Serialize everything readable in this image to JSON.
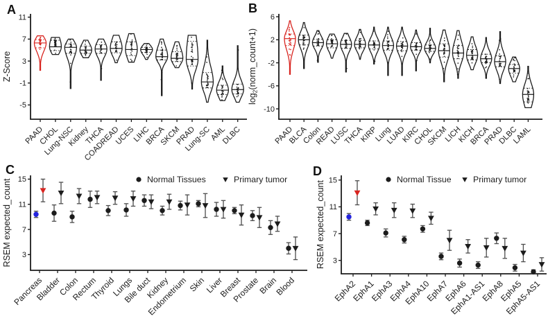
{
  "colors": {
    "black": "#1c1c1c",
    "red": "#d8241f",
    "blue": "#2424de",
    "errorbar": "#4c4c4c",
    "background": "#ffffff"
  },
  "chart_data": [
    {
      "id": "A",
      "type": "violin",
      "ylabel": "Z-Score",
      "yticks": [
        11,
        7,
        3,
        -1,
        -5
      ],
      "ylim": [
        -7.6,
        11.6
      ],
      "highlighted_category": "PAAD",
      "violins": [
        {
          "label": "PAAD",
          "min": 1.3,
          "q1": 5.4,
          "med": 6.3,
          "q3": 6.9,
          "max": 7.6,
          "highlight": true
        },
        {
          "label": "CHOL",
          "min": 4.2,
          "q1": 4.9,
          "med": 5.6,
          "q3": 6.8,
          "max": 7.3
        },
        {
          "label": "Lung-NSC",
          "min": -2.0,
          "q1": 4.4,
          "med": 5.5,
          "q3": 6.1,
          "max": 7.0
        },
        {
          "label": "Kidney",
          "min": 3.6,
          "q1": 4.4,
          "med": 5.0,
          "q3": 5.7,
          "max": 6.8
        },
        {
          "label": "THCA",
          "min": -0.5,
          "q1": 4.4,
          "med": 5.2,
          "q3": 6.0,
          "max": 7.0
        },
        {
          "label": "COADREAD",
          "min": 2.7,
          "q1": 4.5,
          "med": 5.3,
          "q3": 6.5,
          "max": 7.7
        },
        {
          "label": "UCES",
          "min": 2.8,
          "q1": 4.0,
          "med": 5.1,
          "q3": 6.5,
          "max": 8.0
        },
        {
          "label": "LIHC",
          "min": 3.3,
          "q1": 4.6,
          "med": 5.1,
          "q3": 5.5,
          "max": 6.2
        },
        {
          "label": "BRCA",
          "min": -3.3,
          "q1": 3.2,
          "med": 3.8,
          "q3": 5.0,
          "max": 7.0
        },
        {
          "label": "SKCM",
          "min": 1.8,
          "q1": 2.9,
          "med": 3.5,
          "q3": 4.7,
          "max": 6.5
        },
        {
          "label": "PRAD",
          "min": -2.1,
          "q1": 2.1,
          "med": 3.3,
          "q3": 6.6,
          "max": 7.7
        },
        {
          "label": "Lung-SC",
          "min": -4.5,
          "q1": -1.9,
          "med": -0.8,
          "q3": 0.9,
          "max": 6.8
        },
        {
          "label": "AML",
          "min": -4.2,
          "q1": -3.1,
          "med": -2.3,
          "q3": -1.4,
          "max": 2.1
        },
        {
          "label": "DLBC",
          "min": -4.5,
          "q1": -3.0,
          "med": -2.2,
          "q3": -1.2,
          "max": 5.8
        }
      ]
    },
    {
      "id": "B",
      "type": "violin",
      "ylabel_parts": {
        "prefix": "log",
        "sub": "2",
        "suffix": "(norm_count+1)"
      },
      "yticks": [
        6,
        2,
        -2,
        -6,
        -10
      ],
      "ylim": [
        -11.8,
        6.5
      ],
      "highlighted_category": "PAAD",
      "violins": [
        {
          "label": "PAAD",
          "min": -4.0,
          "q1": 1.0,
          "med": 2.2,
          "q3": 3.0,
          "max": 5.3,
          "highlight": true
        },
        {
          "label": "BLCA",
          "min": -3.0,
          "q1": 1.1,
          "med": 2.0,
          "q3": 2.8,
          "max": 5.0
        },
        {
          "label": "Colon",
          "min": -1.9,
          "q1": 0.9,
          "med": 1.5,
          "q3": 2.1,
          "max": 3.6
        },
        {
          "label": "READ",
          "min": -1.2,
          "q1": 0.6,
          "med": 1.3,
          "q3": 2.0,
          "max": 3.0
        },
        {
          "label": "LUSC",
          "min": -3.6,
          "q1": 0.5,
          "med": 1.2,
          "q3": 1.9,
          "max": 3.1
        },
        {
          "label": "THCA",
          "min": -1.4,
          "q1": 0.6,
          "med": 1.2,
          "q3": 1.9,
          "max": 3.8
        },
        {
          "label": "KIRP",
          "min": -2.2,
          "q1": 0.4,
          "med": 1.1,
          "q3": 1.8,
          "max": 4.2
        },
        {
          "label": "Lung",
          "min": -4.2,
          "q1": 0.2,
          "med": 1.0,
          "q3": 1.8,
          "max": 4.2
        },
        {
          "label": "LUAD",
          "min": -4.2,
          "q1": 0.1,
          "med": 0.9,
          "q3": 1.7,
          "max": 4.2
        },
        {
          "label": "KIRC",
          "min": -3.4,
          "q1": 0.2,
          "med": 0.8,
          "q3": 1.5,
          "max": 3.7
        },
        {
          "label": "CHOL",
          "min": -2.0,
          "q1": 0.0,
          "med": 0.5,
          "q3": 1.1,
          "max": 4.0
        },
        {
          "label": "SKCM",
          "min": -5.3,
          "q1": -1.0,
          "med": 0.1,
          "q3": 1.3,
          "max": 3.7
        },
        {
          "label": "LICH",
          "min": -4.7,
          "q1": -1.3,
          "med": -0.3,
          "q3": 1.0,
          "max": 3.6
        },
        {
          "label": "KICH",
          "min": -3.2,
          "q1": -1.5,
          "med": -0.7,
          "q3": 0.3,
          "max": 2.5
        },
        {
          "label": "BRCA",
          "min": -4.7,
          "q1": -2.0,
          "med": -1.3,
          "q3": -0.5,
          "max": 2.4
        },
        {
          "label": "PRAD",
          "min": -5.6,
          "q1": -2.7,
          "med": -1.8,
          "q3": -0.8,
          "max": 3.4
        },
        {
          "label": "DLBC",
          "min": -5.3,
          "q1": -3.8,
          "med": -3.0,
          "q3": -2.3,
          "max": -1.0
        },
        {
          "label": "LAML",
          "min": -9.8,
          "q1": -8.8,
          "med": -7.5,
          "q3": -6.4,
          "max": -2.6
        }
      ]
    },
    {
      "id": "C",
      "type": "scatter-pairs",
      "ylabel": "RSEM expected_count",
      "yticks": [
        15,
        11,
        7,
        3
      ],
      "ylim": [
        0.5,
        15.6
      ],
      "legend": {
        "normal_label": "Normal Tissues",
        "tumor_label": "Primary tumor",
        "normal_marker": "circle",
        "tumor_marker": "triangle-down"
      },
      "highlighted_category": "Pancreas",
      "series": [
        {
          "label": "Pancreas",
          "normal": {
            "v": 9.4,
            "e": 0.5
          },
          "tumor": {
            "v": 13.2,
            "e": 1.8
          },
          "highlight": true
        },
        {
          "label": "Bladder",
          "normal": {
            "v": 9.6,
            "e": 1.3
          },
          "tumor": {
            "v": 12.8,
            "e": 1.7
          }
        },
        {
          "label": "Colon",
          "normal": {
            "v": 9.0,
            "e": 0.9
          },
          "tumor": {
            "v": 12.3,
            "e": 1.2
          }
        },
        {
          "label": "Rectum",
          "normal": {
            "v": 11.8,
            "e": 1.3
          },
          "tumor": {
            "v": 12.1,
            "e": 1.0
          }
        },
        {
          "label": "Thyroid",
          "normal": {
            "v": 10.0,
            "e": 0.8
          },
          "tumor": {
            "v": 12.0,
            "e": 1.0
          }
        },
        {
          "label": "Lungs",
          "normal": {
            "v": 10.1,
            "e": 1.0
          },
          "tumor": {
            "v": 11.9,
            "e": 1.2
          }
        },
        {
          "label": "Bile duct",
          "normal": {
            "v": 11.6,
            "e": 0.9
          },
          "tumor": {
            "v": 11.4,
            "e": 1.1
          }
        },
        {
          "label": "Kidney",
          "normal": {
            "v": 10.0,
            "e": 0.7
          },
          "tumor": {
            "v": 11.4,
            "e": 1.2
          }
        },
        {
          "label": "Endometrium",
          "normal": {
            "v": 10.8,
            "e": 0.7
          },
          "tumor": {
            "v": 10.9,
            "e": 1.6
          }
        },
        {
          "label": "Skin",
          "normal": {
            "v": 11.1,
            "e": 0.5
          },
          "tumor": {
            "v": 10.8,
            "e": 1.9
          }
        },
        {
          "label": "Liver",
          "normal": {
            "v": 10.2,
            "e": 1.1
          },
          "tumor": {
            "v": 10.2,
            "e": 1.4
          }
        },
        {
          "label": "Breast",
          "normal": {
            "v": 10.0,
            "e": 0.5
          },
          "tumor": {
            "v": 9.3,
            "e": 1.6
          }
        },
        {
          "label": "Prostate",
          "normal": {
            "v": 9.2,
            "e": 0.8
          },
          "tumor": {
            "v": 8.9,
            "e": 1.6
          }
        },
        {
          "label": "Brain",
          "normal": {
            "v": 7.3,
            "e": 1.1
          },
          "tumor": {
            "v": 7.9,
            "e": 1.2
          }
        },
        {
          "label": "Blood",
          "normal": {
            "v": 4.0,
            "e": 0.9
          },
          "tumor": {
            "v": 4.0,
            "e": 1.8
          }
        }
      ]
    },
    {
      "id": "D",
      "type": "scatter-pairs",
      "ylabel": "RSEM expected_count",
      "yticks": [
        15,
        11,
        7,
        3
      ],
      "ylim": [
        1.0,
        15.7
      ],
      "legend": {
        "normal_label": "Normal Tissue",
        "tumor_label": "Primary tumor",
        "normal_marker": "circle",
        "tumor_marker": "triangle-down"
      },
      "highlighted_category": "EphA2",
      "series": [
        {
          "label": "EphA2",
          "normal": {
            "v": 9.5,
            "e": 0.5
          },
          "tumor": {
            "v": 13.1,
            "e": 1.8
          },
          "highlight": true
        },
        {
          "label": "EphA1",
          "normal": {
            "v": 8.6,
            "e": 0.4
          },
          "tumor": {
            "v": 10.7,
            "e": 0.9
          }
        },
        {
          "label": "EphA3",
          "normal": {
            "v": 7.1,
            "e": 0.6
          },
          "tumor": {
            "v": 10.5,
            "e": 1.1
          }
        },
        {
          "label": "EphA4",
          "normal": {
            "v": 6.1,
            "e": 0.5
          },
          "tumor": {
            "v": 10.4,
            "e": 1.0
          }
        },
        {
          "label": "EphA10",
          "normal": {
            "v": 7.7,
            "e": 0.5
          },
          "tumor": {
            "v": 9.3,
            "e": 0.9
          }
        },
        {
          "label": "EphA7",
          "normal": {
            "v": 3.6,
            "e": 0.5
          },
          "tumor": {
            "v": 6.0,
            "e": 1.5
          }
        },
        {
          "label": "EphA6",
          "normal": {
            "v": 2.6,
            "e": 0.6
          },
          "tumor": {
            "v": 5.1,
            "e": 1.0
          }
        },
        {
          "label": "EphA1-AS1",
          "normal": {
            "v": 2.3,
            "e": 0.5
          },
          "tumor": {
            "v": 4.9,
            "e": 1.4
          }
        },
        {
          "label": "EphA8",
          "normal": {
            "v": 6.3,
            "e": 0.8
          },
          "tumor": {
            "v": 4.8,
            "e": 1.5
          }
        },
        {
          "label": "EphA5",
          "normal": {
            "v": 1.9,
            "e": 0.5
          },
          "tumor": {
            "v": 4.1,
            "e": 1.3
          }
        },
        {
          "label": "EphA5-AS1",
          "normal": {
            "v": 1.3,
            "e": 0.3
          },
          "tumor": {
            "v": 2.4,
            "e": 1.0
          }
        }
      ]
    }
  ]
}
